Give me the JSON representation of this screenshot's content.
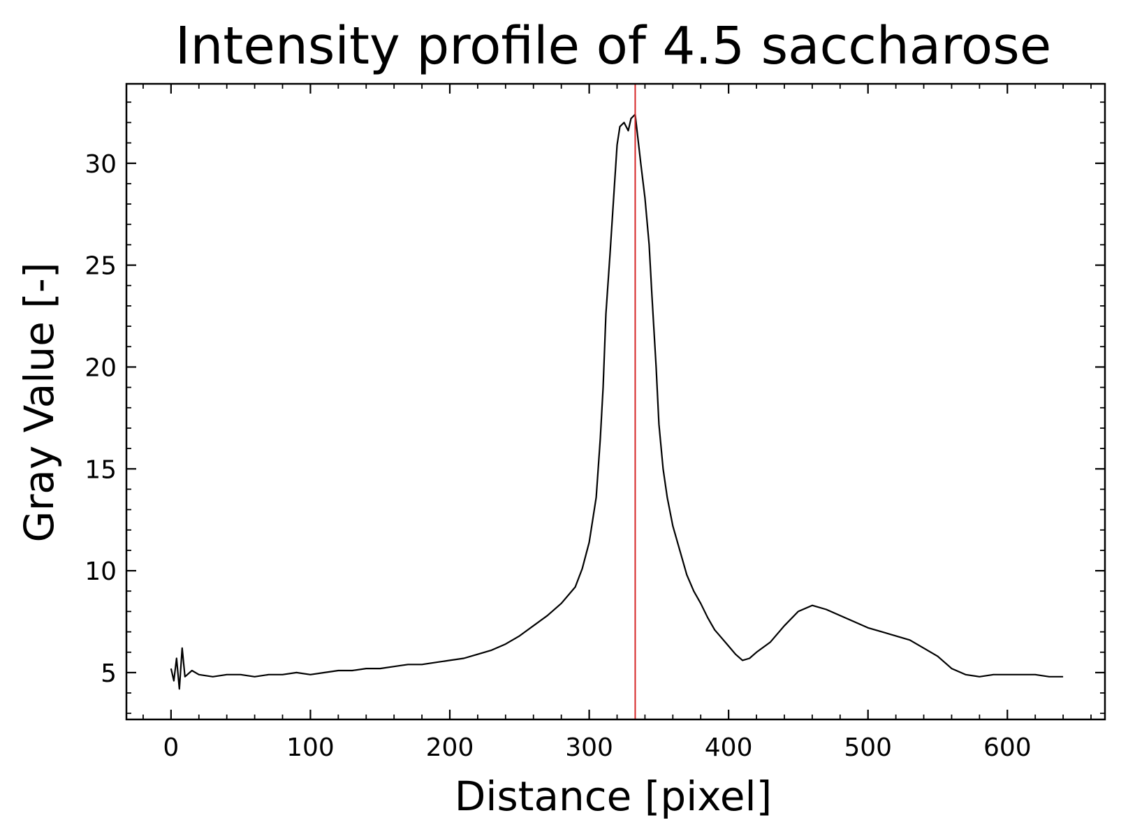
{
  "chart_data": {
    "type": "line",
    "title": "Intensity profile of 4.5 saccharose",
    "xlabel": "Distance [pixel]",
    "ylabel": "Gray Value [-]",
    "xlim": [
      -32,
      670
    ],
    "ylim": [
      2.7,
      33.9
    ],
    "x_ticks": [
      0,
      100,
      200,
      300,
      400,
      500,
      600
    ],
    "x_tick_labels": [
      "0",
      "100",
      "200",
      "300",
      "400",
      "500",
      "600"
    ],
    "y_ticks": [
      5,
      10,
      15,
      20,
      25,
      30
    ],
    "y_tick_labels": [
      "5",
      "10",
      "15",
      "20",
      "25",
      "30"
    ],
    "x_minor_step": 20,
    "y_minor_step": 1,
    "grid": false,
    "tick_direction": "in",
    "vertical_marker": {
      "x": 333,
      "color": "#d62728"
    },
    "line_color": "#000000",
    "series": [
      {
        "x": [
          0,
          2,
          4,
          6,
          8,
          10,
          15,
          20,
          30,
          40,
          50,
          60,
          70,
          80,
          90,
          100,
          110,
          120,
          130,
          140,
          150,
          160,
          170,
          180,
          190,
          200,
          210,
          220,
          230,
          240,
          250,
          260,
          270,
          280,
          290,
          295,
          300,
          305,
          308,
          310,
          312,
          315,
          318,
          320,
          322,
          325,
          328,
          330,
          333,
          335,
          337,
          340,
          343,
          345,
          348,
          350,
          353,
          356,
          360,
          365,
          370,
          375,
          380,
          385,
          390,
          395,
          400,
          405,
          410,
          415,
          420,
          430,
          440,
          450,
          460,
          470,
          480,
          490,
          500,
          510,
          520,
          530,
          540,
          550,
          560,
          570,
          580,
          590,
          600,
          610,
          620,
          630,
          640
        ],
        "values": [
          5.2,
          4.6,
          5.7,
          4.2,
          6.2,
          4.8,
          5.1,
          4.9,
          4.8,
          4.9,
          4.9,
          4.8,
          4.9,
          4.9,
          5.0,
          4.9,
          5.0,
          5.1,
          5.1,
          5.2,
          5.2,
          5.3,
          5.4,
          5.4,
          5.5,
          5.6,
          5.7,
          5.9,
          6.1,
          6.4,
          6.8,
          7.3,
          7.8,
          8.4,
          9.2,
          10.1,
          11.4,
          13.6,
          16.5,
          19.0,
          22.6,
          25.6,
          28.8,
          30.9,
          31.8,
          32.0,
          31.6,
          32.2,
          32.4,
          31.2,
          30.0,
          28.3,
          26.0,
          23.5,
          20.0,
          17.2,
          15.0,
          13.6,
          12.2,
          11.0,
          9.8,
          9.0,
          8.4,
          7.7,
          7.1,
          6.7,
          6.3,
          5.9,
          5.6,
          5.7,
          6.0,
          6.5,
          7.3,
          8.0,
          8.3,
          8.1,
          7.8,
          7.5,
          7.2,
          7.0,
          6.8,
          6.6,
          6.2,
          5.8,
          5.2,
          4.9,
          4.8,
          4.9,
          4.9,
          4.9,
          4.9,
          4.8,
          4.8
        ]
      }
    ]
  }
}
